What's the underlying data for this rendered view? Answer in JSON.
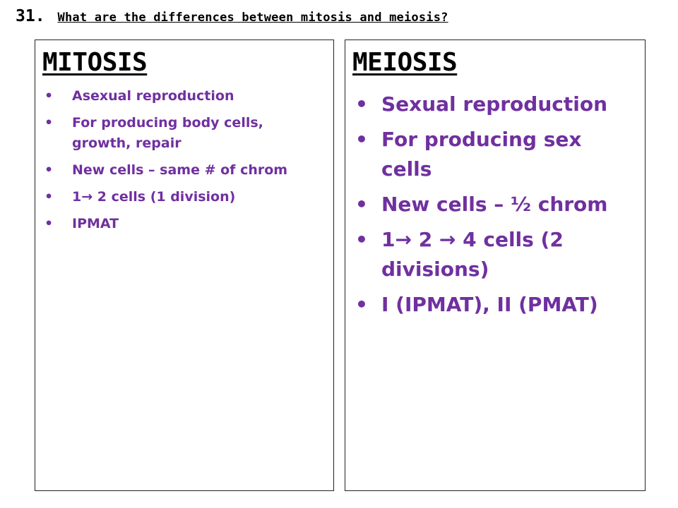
{
  "question": {
    "number": "31.",
    "text": "What are the differences between mitosis and meiosis?"
  },
  "mitosis": {
    "title": "MITOSIS",
    "items": [
      "Asexual reproduction",
      "For producing body cells, growth, repair",
      "New cells – same # of chrom",
      "1→ 2 cells (1 division)",
      "IPMAT"
    ]
  },
  "meiosis": {
    "title": "MEIOSIS",
    "items": [
      "Sexual reproduction",
      "For producing sex cells",
      "New cells – ½ chrom",
      "1→ 2 → 4 cells (2 divisions)",
      "I (IPMAT), II (PMAT)"
    ]
  },
  "bullet_glyph": "•",
  "colors": {
    "text_primary": "#000000",
    "bullet_text": "#7030a0",
    "border": "#222222"
  }
}
